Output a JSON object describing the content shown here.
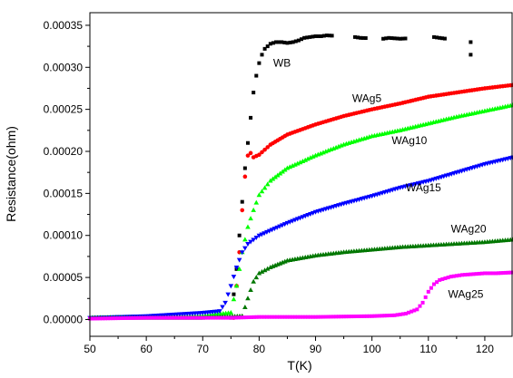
{
  "chart_data": {
    "type": "scatter",
    "xlabel": "T(K)",
    "ylabel": "Resistance(ohm)",
    "xlim": [
      50,
      125
    ],
    "ylim": [
      -2e-05,
      0.000365
    ],
    "xticks": [
      "50",
      "60",
      "70",
      "80",
      "90",
      "100",
      "110",
      "120"
    ],
    "yticks": [
      "0.00000",
      "0.00005",
      "0.00010",
      "0.00015",
      "0.00020",
      "0.00025",
      "0.00030",
      "0.00035"
    ],
    "grid": false,
    "series": [
      {
        "name": "WB",
        "color": "#000000",
        "marker": "square",
        "points": [
          [
            75,
            2e-06
          ],
          [
            75.5,
            3e-05
          ],
          [
            76,
            6e-05
          ],
          [
            76.5,
            0.0001
          ],
          [
            77,
            0.00014
          ],
          [
            77.5,
            0.00018
          ],
          [
            78,
            0.00021
          ],
          [
            78.5,
            0.00024
          ],
          [
            79,
            0.00027
          ],
          [
            79.5,
            0.00029
          ],
          [
            80,
            0.000305
          ],
          [
            80.5,
            0.000315
          ],
          [
            81,
            0.000322
          ],
          [
            82,
            0.000328
          ],
          [
            83,
            0.00033
          ],
          [
            84,
            0.00033
          ],
          [
            85,
            0.000329
          ],
          [
            86,
            0.00033
          ],
          [
            87,
            0.000332
          ],
          [
            88,
            0.000335
          ],
          [
            89,
            0.000336
          ],
          [
            90,
            0.000337
          ],
          [
            91,
            0.000337
          ],
          [
            92,
            0.000338
          ],
          [
            97,
            0.000336
          ],
          [
            98,
            0.000335
          ],
          [
            102,
            0.000334
          ],
          [
            103,
            0.000335
          ],
          [
            105,
            0.000334
          ],
          [
            111,
            0.000336
          ],
          [
            112,
            0.000335
          ],
          [
            117.5,
            0.00033
          ],
          [
            117.5,
            0.000315
          ]
        ]
      },
      {
        "name": "WAg5",
        "color": "#ff0000",
        "marker": "circle",
        "points": [
          [
            75.5,
            2e-06
          ],
          [
            76,
            4e-05
          ],
          [
            76.5,
            8e-05
          ],
          [
            77,
            0.00013
          ],
          [
            77.5,
            0.00017
          ],
          [
            78,
            0.000195
          ],
          [
            78.5,
            0.000198
          ],
          [
            79,
            0.000193
          ],
          [
            80,
            0.000196
          ],
          [
            82,
            0.000208
          ],
          [
            85,
            0.00022
          ],
          [
            90,
            0.000232
          ],
          [
            95,
            0.000242
          ],
          [
            100,
            0.00025
          ],
          [
            105,
            0.000257
          ],
          [
            110,
            0.000265
          ],
          [
            115,
            0.00027
          ],
          [
            120,
            0.000275
          ],
          [
            125,
            0.000279
          ]
        ]
      },
      {
        "name": "WAg10",
        "color": "#00ff00",
        "marker": "triangle",
        "points": [
          [
            50,
            2e-06
          ],
          [
            60,
            3e-06
          ],
          [
            70,
            4e-06
          ],
          [
            75,
            8e-06
          ],
          [
            76,
            4e-05
          ],
          [
            77,
            8e-05
          ],
          [
            78,
            0.00011
          ],
          [
            79,
            0.00013
          ],
          [
            80,
            0.000148
          ],
          [
            82,
            0.000165
          ],
          [
            85,
            0.00018
          ],
          [
            90,
            0.000195
          ],
          [
            95,
            0.000208
          ],
          [
            100,
            0.000218
          ],
          [
            105,
            0.000225
          ],
          [
            110,
            0.000233
          ],
          [
            115,
            0.000241
          ],
          [
            120,
            0.000248
          ],
          [
            125,
            0.000255
          ]
        ]
      },
      {
        "name": "WAg15",
        "color": "#0000ff",
        "marker": "triangle-down",
        "points": [
          [
            50,
            2e-06
          ],
          [
            60,
            4e-06
          ],
          [
            65,
            6e-06
          ],
          [
            70,
            8e-06
          ],
          [
            73,
            1e-05
          ],
          [
            74,
            2e-05
          ],
          [
            75,
            4e-05
          ],
          [
            76,
            6.2e-05
          ],
          [
            77,
            8e-05
          ],
          [
            78,
            9e-05
          ],
          [
            80,
            0.0001
          ],
          [
            85,
            0.000115
          ],
          [
            90,
            0.000128
          ],
          [
            95,
            0.000138
          ],
          [
            100,
            0.000147
          ],
          [
            105,
            0.000157
          ],
          [
            110,
            0.000165
          ],
          [
            115,
            0.000175
          ],
          [
            120,
            0.000185
          ],
          [
            125,
            0.000193
          ]
        ]
      },
      {
        "name": "WAg20",
        "color": "#007700",
        "marker": "triangle",
        "points": [
          [
            50,
            2e-06
          ],
          [
            60,
            2e-06
          ],
          [
            70,
            2e-06
          ],
          [
            77,
            4e-06
          ],
          [
            78,
            2.5e-05
          ],
          [
            79,
            4.5e-05
          ],
          [
            80,
            5.5e-05
          ],
          [
            82,
            6.2e-05
          ],
          [
            85,
            7e-05
          ],
          [
            90,
            7.6e-05
          ],
          [
            95,
            8e-05
          ],
          [
            100,
            8.3e-05
          ],
          [
            105,
            8.6e-05
          ],
          [
            110,
            8.8e-05
          ],
          [
            115,
            9e-05
          ],
          [
            120,
            9.2e-05
          ],
          [
            125,
            9.5e-05
          ]
        ]
      },
      {
        "name": "WAg25",
        "color": "#ff00ff",
        "marker": "square",
        "points": [
          [
            50,
            1e-06
          ],
          [
            60,
            2e-06
          ],
          [
            70,
            2e-06
          ],
          [
            75,
            2e-06
          ],
          [
            80,
            3e-06
          ],
          [
            90,
            3e-06
          ],
          [
            100,
            4e-06
          ],
          [
            104,
            5e-06
          ],
          [
            106,
            7e-06
          ],
          [
            108,
            1.2e-05
          ],
          [
            109,
            2e-05
          ],
          [
            110,
            3.3e-05
          ],
          [
            111,
            4.2e-05
          ],
          [
            112,
            4.7e-05
          ],
          [
            114,
            5.1e-05
          ],
          [
            116,
            5.3e-05
          ],
          [
            118,
            5.4e-05
          ],
          [
            120,
            5.5e-05
          ],
          [
            122,
            5.5e-05
          ],
          [
            125,
            5.6e-05
          ]
        ]
      }
    ],
    "annotations": [
      {
        "text": "WB",
        "x": 82.5,
        "y": 0.000305
      },
      {
        "text": "WAg5",
        "x": 96.5,
        "y": 0.000263
      },
      {
        "text": "WAg10",
        "x": 103.5,
        "y": 0.000213
      },
      {
        "text": "WAg15",
        "x": 106,
        "y": 0.000157
      },
      {
        "text": "WAg20",
        "x": 114,
        "y": 0.000108
      },
      {
        "text": "WAg25",
        "x": 113.5,
        "y": 3e-05
      }
    ]
  }
}
